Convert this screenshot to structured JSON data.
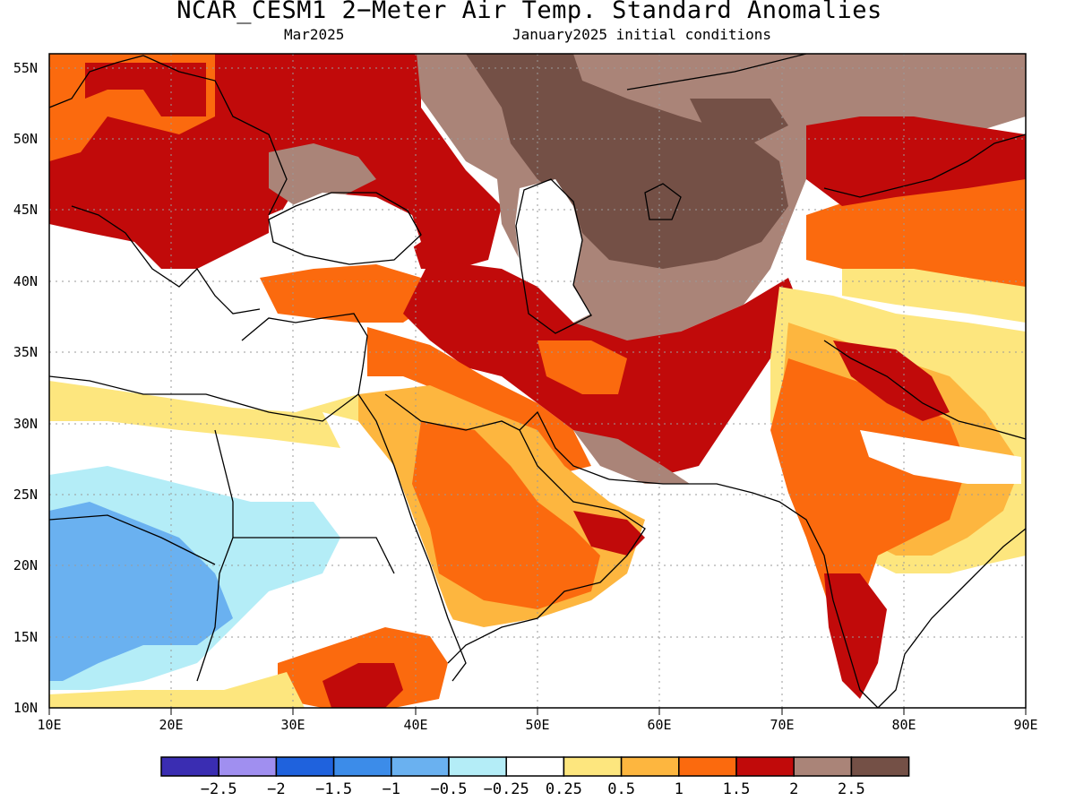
{
  "title": "NCAR_CESM1 2−Meter Air Temp. Standard Anomalies",
  "subtitle_left": "Mar2025",
  "subtitle_right": "January2025 initial conditions",
  "map": {
    "lon_range": [
      10,
      90
    ],
    "lat_range": [
      10,
      56
    ],
    "grid": true,
    "x_ticks": [
      "10E",
      "20E",
      "30E",
      "40E",
      "50E",
      "60E",
      "70E",
      "80E",
      "90E"
    ],
    "y_ticks": [
      "55N",
      "50N",
      "45N",
      "40N",
      "35N",
      "30N",
      "25N",
      "20N",
      "15N",
      "10N"
    ]
  },
  "colorbar": {
    "colors": [
      "#3a2db2",
      "#a08ff0",
      "#1f62dd",
      "#3c8ce9",
      "#6ab1f0",
      "#b4edf7",
      "#ffffff",
      "#fde67e",
      "#fdb63f",
      "#fb6a0e",
      "#c10a0a",
      "#aa8478",
      "#745046"
    ],
    "labels": [
      "−2.5",
      "−2",
      "−1.5",
      "−1",
      "−0.5",
      "−0.25",
      "0.25",
      "0.5",
      "1",
      "1.5",
      "2",
      "2.5"
    ]
  },
  "colors": {
    "brown_dark": "#745046",
    "brown_light": "#aa8478",
    "red": "#c10a0a",
    "orange": "#fb6a0e",
    "light_orange": "#fdb63f",
    "yellow": "#fde67e",
    "light_blue": "#b4edf7",
    "mid_blue": "#6ab1f0"
  }
}
